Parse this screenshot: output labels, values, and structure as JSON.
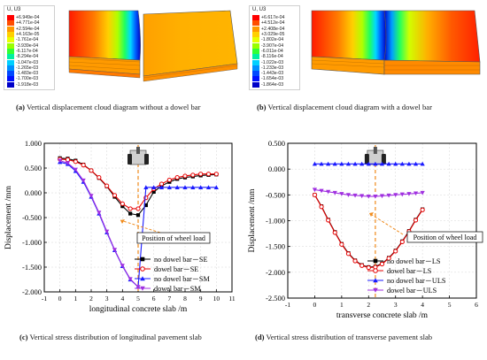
{
  "panel_a": {
    "legend_title": "U, U3",
    "legend_values": [
      "+6.949e-04",
      "+4.771e-04",
      "+2.594e-04",
      "+4.163e-05",
      "-1.761e-04",
      "-3.939e-04",
      "-6.117e-04",
      "-8.294e-04",
      "-1.047e-03",
      "-1.265e-03",
      "-1.483e-03",
      "-1.700e-03",
      "-1.918e-03"
    ],
    "legend_colors": [
      "#ff0000",
      "#ff4d00",
      "#ff9900",
      "#ffd000",
      "#e8ff00",
      "#99ff00",
      "#33ff33",
      "#00f0a0",
      "#00d0ff",
      "#0090ff",
      "#0048ff",
      "#0010ff",
      "#0000c8"
    ],
    "caption_label": "(a)",
    "caption_text": "Vertical displacement cloud diagram without a dowel bar"
  },
  "panel_b": {
    "legend_title": "U, U3",
    "legend_values": [
      "+6.617e-04",
      "+4.512e-04",
      "+2.408e-04",
      "+3.029e-05",
      "-1.802e-04",
      "-3.907e-04",
      "-6.011e-04",
      "-8.116e-04",
      "-1.022e-03",
      "-1.233e-03",
      "-1.443e-03",
      "-1.654e-03",
      "-1.864e-03"
    ],
    "legend_colors": [
      "#ff0000",
      "#ff4d00",
      "#ff9900",
      "#ffd000",
      "#e8ff00",
      "#99ff00",
      "#33ff33",
      "#00f0a0",
      "#00d0ff",
      "#0090ff",
      "#0048ff",
      "#0010ff",
      "#0000c8"
    ],
    "caption_label": "(b)",
    "caption_text": "Vertical displacement cloud diagram with a dowel bar"
  },
  "panel_c": {
    "caption_label": "(c)",
    "caption_text": "Vertical stress distribution of longitudinal pavement slab",
    "annotation": "Position of wheel load"
  },
  "panel_d": {
    "caption_label": "(d)",
    "caption_text": "Vertical stress distribution of transverse pavement slab",
    "annotation": "Position of wheel load"
  },
  "chart_data": [
    {
      "type": "line",
      "xlabel": "longitudinal concrete  slab /m",
      "ylabel": "Displacement /mm",
      "xlim": [
        -1,
        11
      ],
      "ylim": [
        -2.0,
        1.0
      ],
      "xticks": [
        -1,
        0,
        1,
        2,
        3,
        4,
        5,
        6,
        7,
        8,
        9,
        10,
        11
      ],
      "yticks": [
        -2.0,
        -1.5,
        -1.0,
        -0.5,
        0.0,
        0.5,
        1.0
      ],
      "ytick_labels": [
        "-2.000",
        "-1.500",
        "-1.000",
        "-0.500",
        "0.000",
        "0.500",
        "1.000"
      ],
      "grid": true,
      "legend_position": "bottom-right",
      "wheel_load_x": 5,
      "series": [
        {
          "name": "no dowel bar－SE",
          "color": "#000000",
          "marker": "square",
          "x": [
            0,
            0.5,
            1,
            1.5,
            2,
            2.5,
            3,
            3.5,
            4,
            4.5,
            5,
            5.5,
            6,
            6.5,
            7,
            7.5,
            8,
            8.5,
            9,
            9.5,
            10
          ],
          "y": [
            0.7,
            0.69,
            0.65,
            0.57,
            0.45,
            0.3,
            0.13,
            -0.08,
            -0.27,
            -0.42,
            -0.45,
            -0.25,
            0.02,
            0.14,
            0.22,
            0.28,
            0.31,
            0.33,
            0.35,
            0.36,
            0.37
          ]
        },
        {
          "name": "dowel bar－SE",
          "color": "#e60000",
          "marker": "circle",
          "x": [
            0,
            0.5,
            1,
            1.5,
            2,
            2.5,
            3,
            3.5,
            4,
            4.5,
            5,
            5.5,
            6,
            6.5,
            7,
            7.5,
            8,
            8.5,
            9,
            9.5,
            10
          ],
          "y": [
            0.68,
            0.67,
            0.63,
            0.56,
            0.45,
            0.31,
            0.14,
            -0.05,
            -0.22,
            -0.32,
            -0.32,
            -0.1,
            0.08,
            0.18,
            0.26,
            0.31,
            0.34,
            0.36,
            0.38,
            0.38,
            0.38
          ]
        },
        {
          "name": "no dowel bar－SM",
          "color": "#1a1aff",
          "marker": "triangle",
          "x": [
            0,
            0.5,
            1,
            1.5,
            2,
            2.5,
            3,
            3.5,
            4,
            4.5,
            5,
            5.5,
            6,
            6.5,
            7,
            7.5,
            8,
            8.5,
            9,
            9.5,
            10
          ],
          "y": [
            0.62,
            0.58,
            0.44,
            0.22,
            -0.08,
            -0.42,
            -0.8,
            -1.16,
            -1.48,
            -1.75,
            -1.9,
            0.11,
            0.11,
            0.11,
            0.11,
            0.11,
            0.11,
            0.11,
            0.11,
            0.11,
            0.11
          ]
        },
        {
          "name": "dowel bar－SM",
          "color": "#a030e0",
          "marker": "triangle-down",
          "x": [
            0,
            0.5,
            1,
            1.5,
            2,
            2.5,
            3,
            3.5,
            4,
            4.5,
            5
          ],
          "y": [
            0.65,
            0.6,
            0.47,
            0.25,
            -0.06,
            -0.4,
            -0.78,
            -1.15,
            -1.47,
            -1.74,
            -1.9
          ]
        }
      ]
    },
    {
      "type": "line",
      "xlabel": "transverse concrete  slab /m",
      "ylabel": "Displacement /mm",
      "xlim": [
        -1,
        6
      ],
      "ylim": [
        -2.5,
        0.5
      ],
      "xticks": [
        -1,
        0,
        1,
        2,
        3,
        4,
        5,
        6
      ],
      "yticks": [
        -2.5,
        -2.0,
        -1.5,
        -1.0,
        -0.5,
        0.0,
        0.5
      ],
      "ytick_labels": [
        "-2.500",
        "-2.000",
        "-1.500",
        "-1.000",
        "-0.500",
        "0.000",
        "0.500"
      ],
      "grid": true,
      "legend_position": "bottom-right",
      "wheel_load_x": 2.25,
      "series": [
        {
          "name": "no dowel bar－LS",
          "color": "#000000",
          "marker": "square",
          "x": [
            0,
            0.25,
            0.5,
            0.75,
            1,
            1.25,
            1.5,
            1.75,
            2,
            2.25,
            2.5,
            2.75,
            3,
            3.25,
            3.5,
            3.75,
            4
          ],
          "y": [
            -0.5,
            -0.72,
            -0.98,
            -1.22,
            -1.45,
            -1.63,
            -1.77,
            -1.86,
            -1.9,
            -1.89,
            -1.83,
            -1.72,
            -1.58,
            -1.4,
            -1.2,
            -0.98,
            -0.78
          ]
        },
        {
          "name": "dowel bar－LS",
          "color": "#e60000",
          "marker": "circle",
          "x": [
            0,
            0.25,
            0.5,
            0.75,
            1,
            1.25,
            1.5,
            1.75,
            2,
            2.25,
            2.5,
            2.75,
            3,
            3.25,
            3.5,
            3.75,
            4
          ],
          "y": [
            -0.5,
            -0.73,
            -0.99,
            -1.23,
            -1.46,
            -1.64,
            -1.78,
            -1.87,
            -1.91,
            -1.9,
            -1.84,
            -1.73,
            -1.59,
            -1.41,
            -1.21,
            -0.99,
            -0.79
          ]
        },
        {
          "name": "no dowel bar－ULS",
          "color": "#1a1aff",
          "marker": "triangle",
          "x": [
            0,
            0.25,
            0.5,
            0.75,
            1,
            1.25,
            1.5,
            1.75,
            2,
            2.25,
            2.5,
            2.75,
            3,
            3.25,
            3.5,
            3.75,
            4
          ],
          "y": [
            0.1,
            0.1,
            0.1,
            0.1,
            0.1,
            0.1,
            0.1,
            0.1,
            0.1,
            0.1,
            0.1,
            0.1,
            0.1,
            0.1,
            0.1,
            0.1,
            0.1
          ]
        },
        {
          "name": "dowel bar－ULS",
          "color": "#a030e0",
          "marker": "triangle-down",
          "x": [
            0,
            0.25,
            0.5,
            0.75,
            1,
            1.25,
            1.5,
            1.75,
            2,
            2.25,
            2.5,
            2.75,
            3,
            3.25,
            3.5,
            3.75,
            4
          ],
          "y": [
            -0.4,
            -0.42,
            -0.44,
            -0.46,
            -0.48,
            -0.5,
            -0.51,
            -0.52,
            -0.53,
            -0.53,
            -0.52,
            -0.51,
            -0.5,
            -0.49,
            -0.48,
            -0.47,
            -0.46
          ]
        }
      ]
    }
  ]
}
